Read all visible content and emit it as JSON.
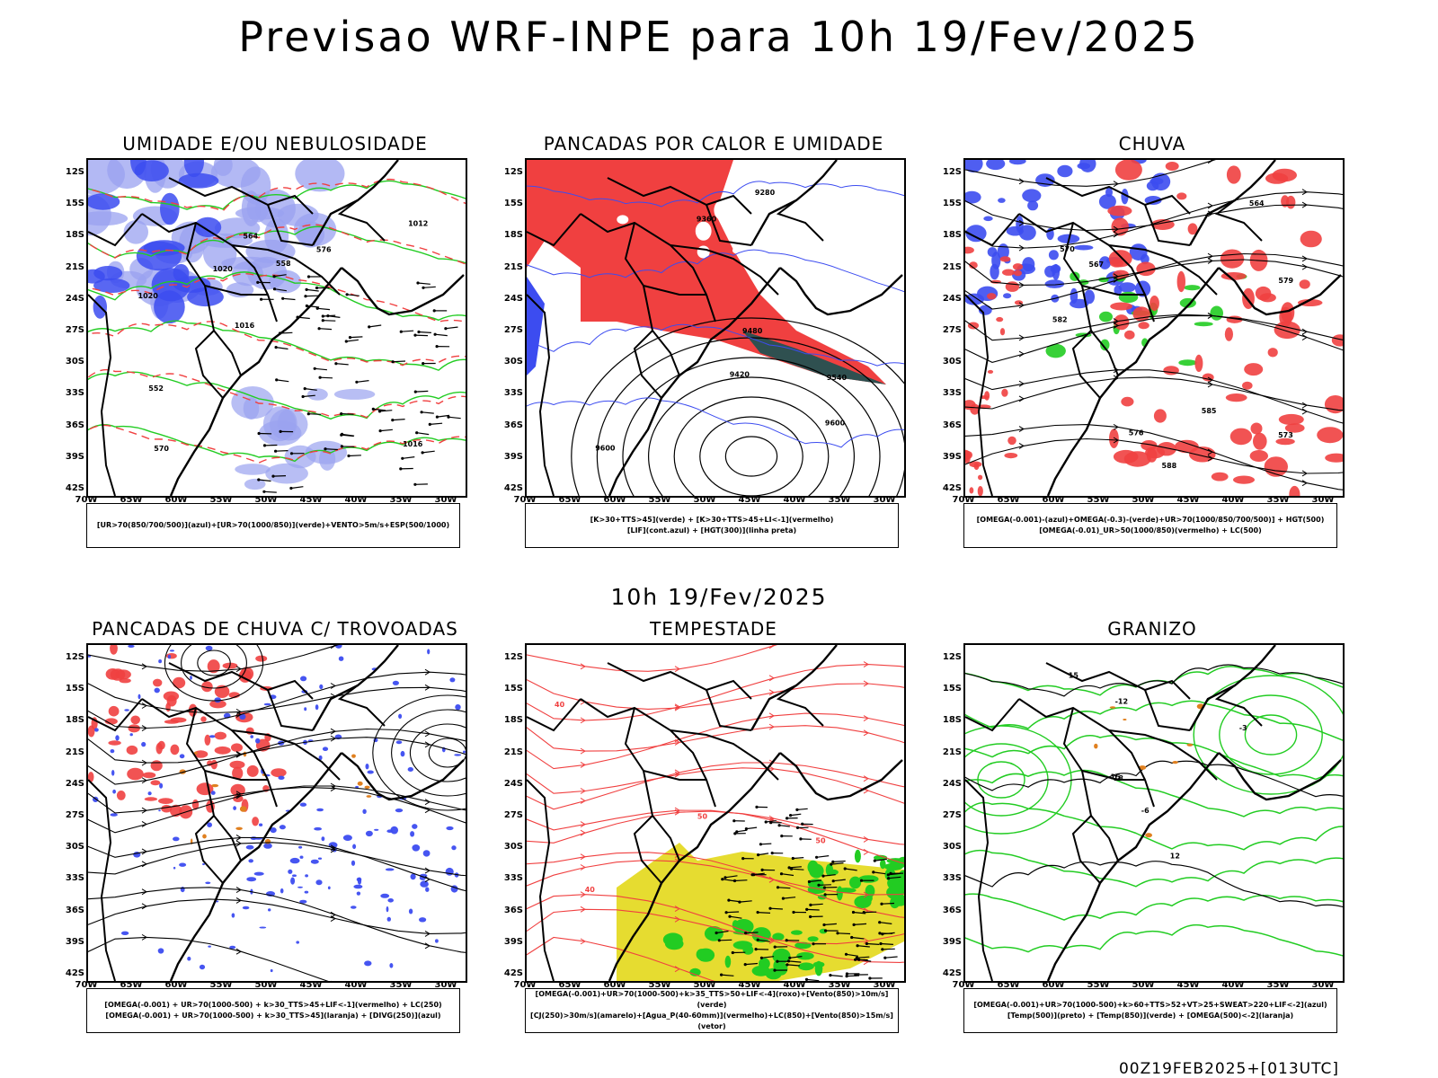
{
  "header": {
    "title": "Previsao WRF-INPE  para 10h 19/Fev/2025"
  },
  "center_time": "10h 19/Fev/2025",
  "footer_code": "00Z19FEB2025+[013UTC]",
  "axes": {
    "lat_labels": [
      "12S",
      "15S",
      "18S",
      "21S",
      "24S",
      "27S",
      "30S",
      "33S",
      "36S",
      "39S",
      "42S"
    ],
    "lon_labels": [
      "70W",
      "65W",
      "60W",
      "55W",
      "50W",
      "45W",
      "40W",
      "35W",
      "30W"
    ]
  },
  "panels": [
    {
      "id": "umidade",
      "title": "UMIDADE E/OU NEBULOSIDADE",
      "legend": [
        "[UR>70(850/700/500)](azul)+[UR>70(1000/850)](verde)+VENTO>5m/s+ESP(500/1000)"
      ],
      "contour_labels": [
        "1016",
        "1020",
        "1012",
        "1016",
        "576",
        "570",
        "564",
        "558",
        "552",
        "1020"
      ]
    },
    {
      "id": "pancadas-calor",
      "title": "PANCADAS POR CALOR E UMIDADE",
      "legend": [
        "[K>30+TTS>45](verde) + [K>30+TTS>45+LI<-1](vermelho)",
        "[LIF](cont.azul) + [HGT(300)](linha preta)"
      ],
      "contour_labels": [
        "9600",
        "9540",
        "9480",
        "9420",
        "9360",
        "9280",
        "9600"
      ]
    },
    {
      "id": "chuva",
      "title": "CHUVA",
      "legend": [
        "[OMEGA(-0.001)-(azul)+OMEGA(-0.3)-(verde)+UR>70(1000/850/700/500)] + HGT(500)",
        "[OMEGA(-0.01)_UR>50(1000/850)(vermelho) + LC(500)"
      ],
      "contour_labels": [
        "585",
        "582",
        "579",
        "576",
        "573",
        "570",
        "567",
        "564",
        "588"
      ]
    },
    {
      "id": "trovoadas",
      "title": "PANCADAS DE CHUVA C/ TROVOADAS",
      "legend": [
        "[OMEGA(-0.001) + UR>70(1000-500) + k>30_TTS>45+LIF<-1](vermelho) + LC(250)",
        "[OMEGA(-0.001) + UR>70(1000-500) + k>30_TTS>45](laranja) + [DIVG(250)](azul)"
      ],
      "contour_labels": []
    },
    {
      "id": "tempestade",
      "title": "TEMPESTADE",
      "legend": [
        "[OMEGA(-0.001)+UR>70(1000-500)+k>35_TTS>50+LIF<-4](roxo)+[Vento(850)>10m/s](verde)",
        "[CJ(250)>30m/s](amarelo)+[Agua_P(40-60mm)](vermelho)+LC(850)+[Vento(850)>15m/s](vetor)"
      ],
      "contour_labels": [
        "50",
        "40",
        "50",
        "40"
      ]
    },
    {
      "id": "granizo",
      "title": "GRANIZO",
      "legend": [
        "[OMEGA(-0.001)+UR>70(1000-500)+k>60+TTS>52+VT>25+SWEAT>220+LIF<-2](azul)",
        "[Temp(500)](preto) + [Temp(850)](verde) + [OMEGA(500)<-2](laranja)"
      ],
      "contour_labels": [
        "-3",
        "-6",
        "-12",
        "15",
        "18",
        "12",
        "15"
      ]
    }
  ],
  "colors": {
    "blue": "#3c4cf0",
    "lightblue": "#9aa2f0",
    "green": "#22cc22",
    "red": "#f04040",
    "yellow": "#e6dc30",
    "darkteal": "#2f5050",
    "orange": "#e08020"
  }
}
